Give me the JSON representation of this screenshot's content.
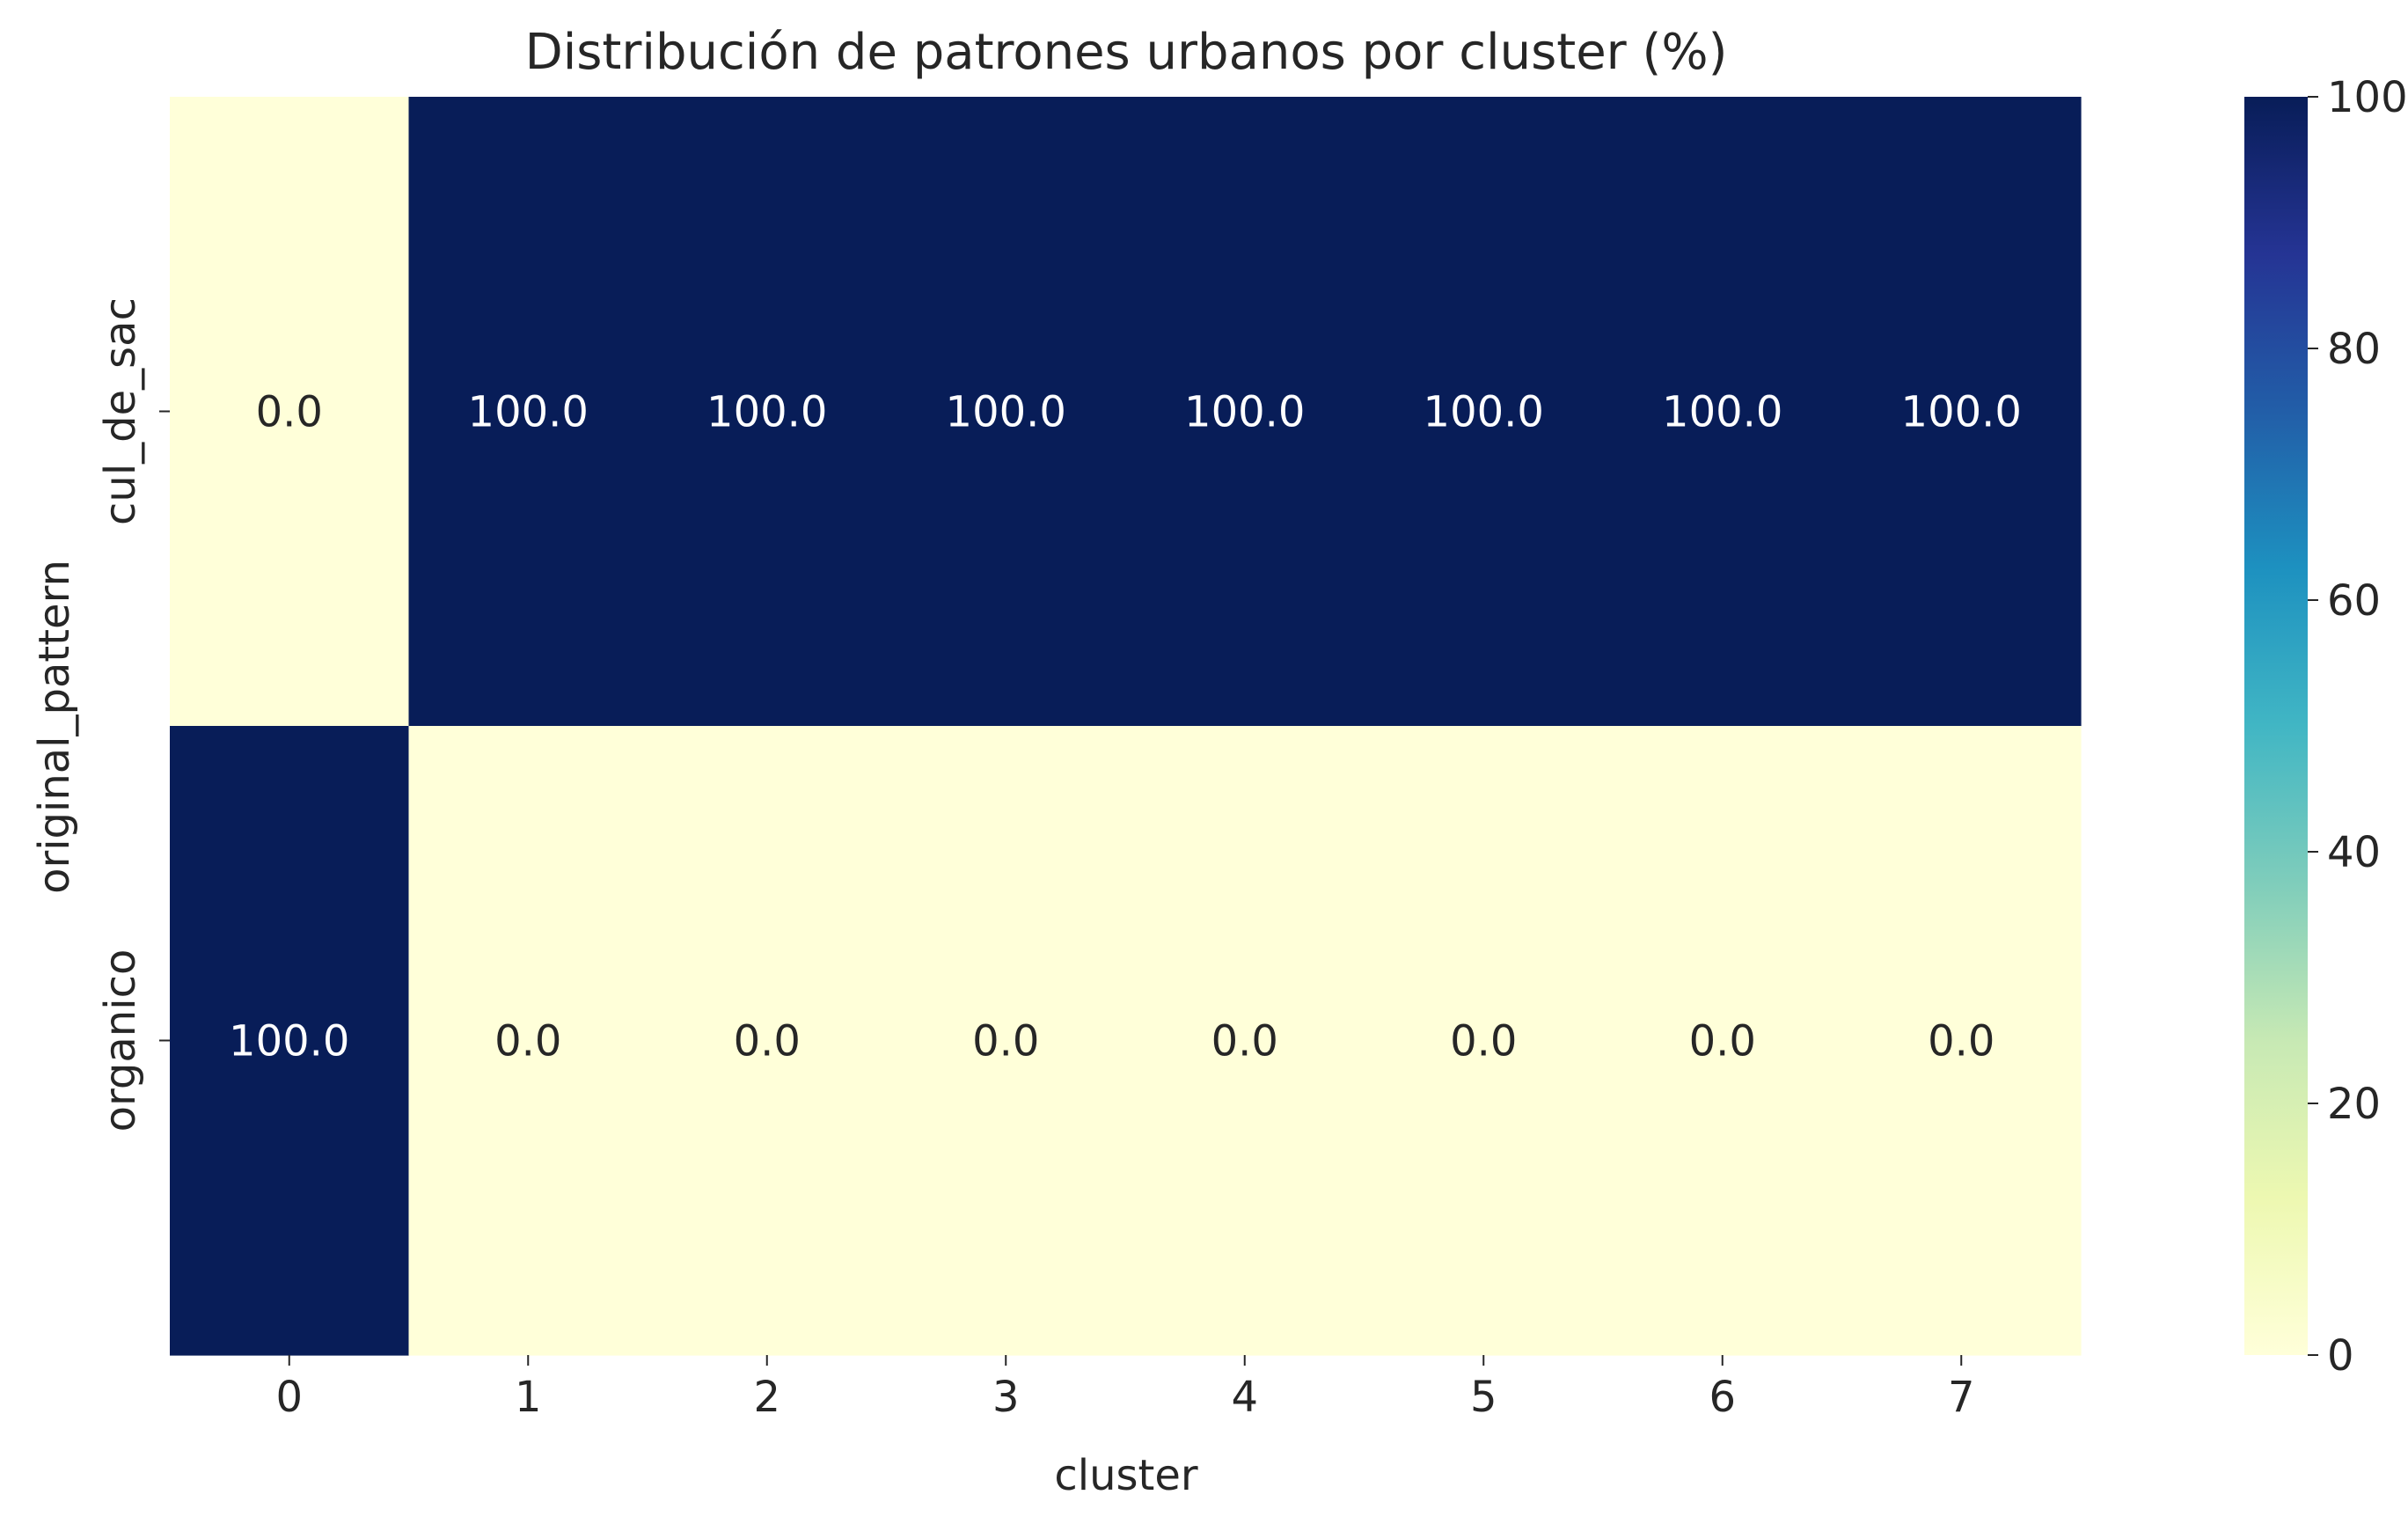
{
  "chart_data": {
    "type": "heatmap",
    "title": "Distribución de patrones urbanos por cluster (%)",
    "xlabel": "cluster",
    "ylabel": "original_pattern",
    "x_categories": [
      "0",
      "1",
      "2",
      "3",
      "4",
      "5",
      "6",
      "7"
    ],
    "y_categories": [
      "cul_de_sac",
      "organico"
    ],
    "values": [
      [
        0.0,
        100.0,
        100.0,
        100.0,
        100.0,
        100.0,
        100.0,
        100.0
      ],
      [
        100.0,
        0.0,
        0.0,
        0.0,
        0.0,
        0.0,
        0.0,
        0.0
      ]
    ],
    "cell_labels": [
      [
        "0.0",
        "100.0",
        "100.0",
        "100.0",
        "100.0",
        "100.0",
        "100.0",
        "100.0"
      ],
      [
        "100.0",
        "0.0",
        "0.0",
        "0.0",
        "0.0",
        "0.0",
        "0.0",
        "0.0"
      ]
    ],
    "colorbar": {
      "range": [
        0,
        100
      ],
      "ticks": [
        0,
        20,
        40,
        60,
        80,
        100
      ],
      "colormap": "YlGnBu",
      "low_color": "#ffffd9",
      "high_color": "#081d58"
    },
    "grid": false
  }
}
